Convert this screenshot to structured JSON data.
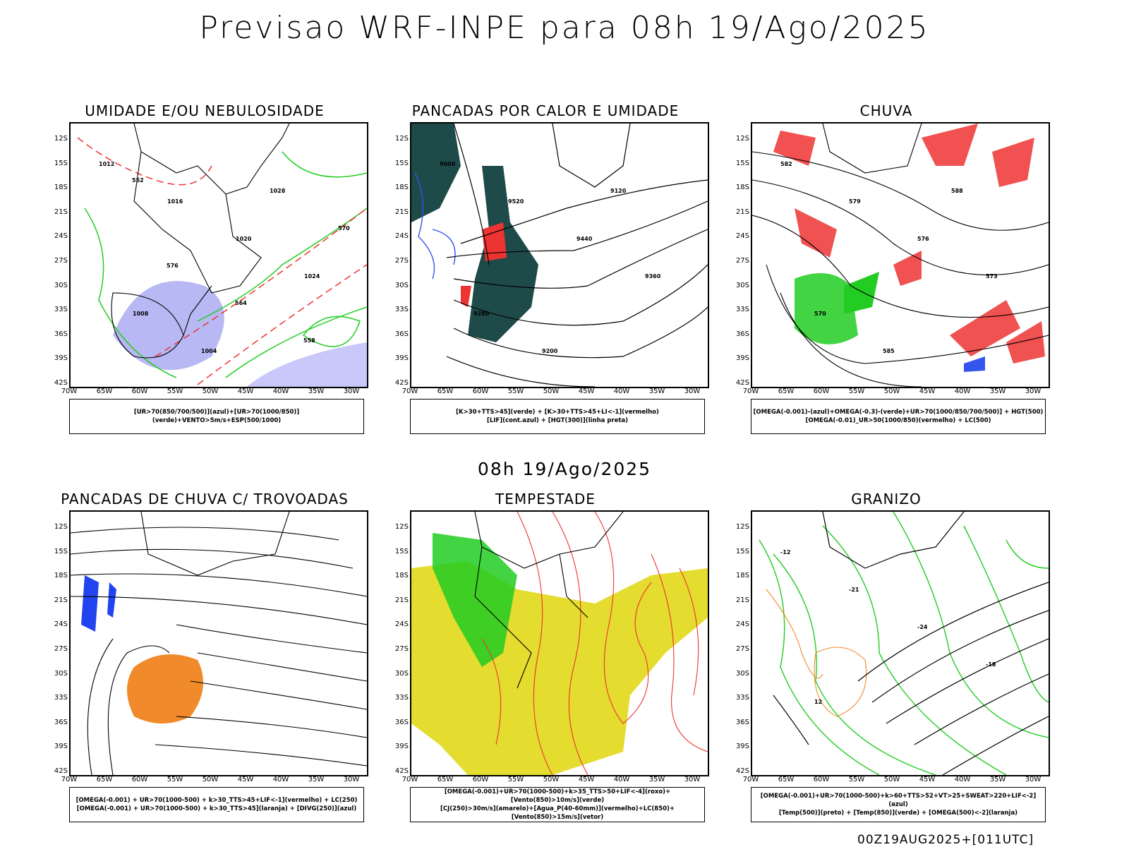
{
  "main_title": "Previsao WRF-INPE  para 08h 19/Ago/2025",
  "mid_title": "08h 19/Ago/2025",
  "footer": "00Z19AUG2025+[011UTC]",
  "lat_labels": [
    "12S",
    "15S",
    "18S",
    "21S",
    "24S",
    "27S",
    "30S",
    "33S",
    "36S",
    "39S",
    "42S"
  ],
  "lon_labels": [
    "70W",
    "65W",
    "60W",
    "55W",
    "50W",
    "45W",
    "40W",
    "35W",
    "30W"
  ],
  "panels": [
    {
      "title": "UMIDADE E/OU NEBULOSIDADE",
      "legend": [
        "[UR>70(850/700/500)](azul)+[UR>70(1000/850)](verde)+VENTO>5m/s+ESP(500/1000)"
      ],
      "contour_labels": [
        "1012",
        "1016",
        "1020",
        "1024",
        "1008",
        "1004",
        "1028",
        "570",
        "576",
        "564",
        "558",
        "552"
      ]
    },
    {
      "title": "PANCADAS POR CALOR E UMIDADE",
      "legend": [
        "[K>30+TTS>45](verde) + [K>30+TTS>45+LI<-1](vermelho)",
        "[LIF](cont.azul) + [HGT(300)](linha preta)"
      ],
      "contour_labels": [
        "9600",
        "9520",
        "9440",
        "9360",
        "9280",
        "9200",
        "9120"
      ]
    },
    {
      "title": "CHUVA",
      "legend": [
        "[OMEGA(-0.001)-(azul)+OMEGA(-0.3)-(verde)+UR>70(1000/850/700/500)] + HGT(500)",
        "[OMEGA(-0.01)_UR>50(1000/850)(vermelho) + LC(500)"
      ],
      "contour_labels": [
        "582",
        "579",
        "576",
        "573",
        "570",
        "585",
        "588"
      ]
    },
    {
      "title": "PANCADAS DE CHUVA C/ TROVOADAS",
      "legend": [
        "[OMEGA(-0.001) + UR>70(1000-500) + k>30_TTS>45+LIF<-1](vermelho) + LC(250)",
        "[OMEGA(-0.001) + UR>70(1000-500) + k>30_TTS>45](laranja) + [DIVG(250)](azul)"
      ],
      "contour_labels": []
    },
    {
      "title": "TEMPESTADE",
      "legend": [
        "[OMEGA(-0.001)+UR>70(1000-500)+k>35_TTS>50+LIF<-4](roxo)+[Vento(850)>10m/s](verde)",
        "[CJ(250)>30m/s](amarelo)+[Agua_P(40-60mm)](vermelho)+LC(850)+[Vento(850)>15m/s](vetor)"
      ],
      "contour_labels": []
    },
    {
      "title": "GRANIZO",
      "legend": [
        "[OMEGA(-0.001)+UR>70(1000-500)+k>60+TTS>52+VT>25+SWEAT>220+LIF<-2](azul)",
        "[Temp(500)](preto) + [Temp(850)](verde) + [OMEGA(500)<-2](laranja)"
      ],
      "contour_labels": [
        "-12",
        "-21",
        "-24",
        "-18",
        "12"
      ]
    }
  ]
}
